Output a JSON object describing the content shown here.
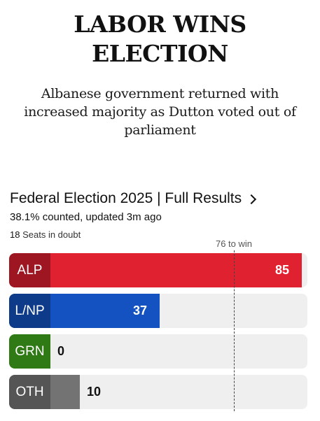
{
  "headline": {
    "line1": "LABOR WINS",
    "line2": "ELECTION"
  },
  "subheadline": "Albanese government returned with increased majority as Dutton voted out of parliament",
  "results": {
    "title": "Federal Election 2025 | Full Results",
    "link_icon": "chevron-right-icon",
    "counted": "38.1% counted, updated 3m ago",
    "seats_in_doubt_count": "18",
    "seats_in_doubt_label": "Seats in doubt",
    "win_threshold_label": "76 to win"
  },
  "chart_data": {
    "type": "bar",
    "orientation": "horizontal",
    "categories": [
      "ALP",
      "L/NP",
      "GRN",
      "OTH"
    ],
    "values": [
      85,
      37,
      0,
      10
    ],
    "colors": [
      "#e0212f",
      "#1452c1",
      "#4ba22a",
      "#737373"
    ],
    "code_colors": [
      "#9e1622",
      "#0e3a8a",
      "#2f7a14",
      "#555555"
    ],
    "xlim": [
      0,
      101
    ],
    "reference_line": 76
  }
}
